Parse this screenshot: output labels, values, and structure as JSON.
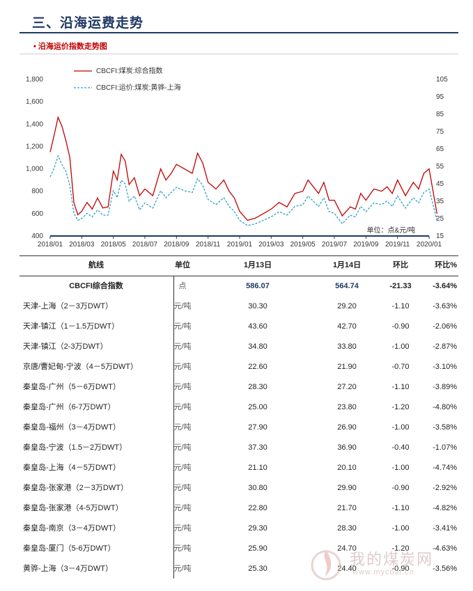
{
  "header": {
    "title": "三、沿海运费走势"
  },
  "figure": {
    "title": "• 沿海运价指数走势图"
  },
  "chart_data": {
    "type": "line",
    "title": "",
    "unit_note": "单位：点&元/吨",
    "x_tick_labels": [
      "2018/01",
      "2018/03",
      "2018/05",
      "2018/07",
      "2018/09",
      "2018/11",
      "2019/01",
      "2019/03",
      "2019/05",
      "2019/07",
      "2019/09",
      "2019/11",
      "2020/01"
    ],
    "y_left": {
      "range": [
        400,
        1800
      ],
      "ticks": [
        "400",
        "600",
        "800",
        "1,000",
        "1,200",
        "1,400",
        "1,600",
        "1,800"
      ]
    },
    "y_right": {
      "range": [
        15,
        105
      ],
      "ticks": [
        "15",
        "25",
        "35",
        "45",
        "55",
        "65",
        "75",
        "85",
        "95",
        "105"
      ]
    },
    "legend_position": "top-left",
    "series": [
      {
        "name": "CBCFI:煤炭:综合指数",
        "axis": "left",
        "color": "#c00000",
        "style": "solid",
        "x": [
          "2018/01",
          "2018/01",
          "2018/01",
          "2018/01",
          "2018/02",
          "2018/02",
          "2018/02",
          "2018/02",
          "2018/03",
          "2018/03",
          "2018/03",
          "2018/04",
          "2018/04",
          "2018/04",
          "2018/05",
          "2018/05",
          "2018/05",
          "2018/05",
          "2018/06",
          "2018/06",
          "2018/06",
          "2018/07",
          "2018/07",
          "2018/08",
          "2018/08",
          "2018/08",
          "2018/09",
          "2018/09",
          "2018/10",
          "2018/10",
          "2018/10",
          "2018/11",
          "2018/11",
          "2018/12",
          "2018/12",
          "2018/12",
          "2019/01",
          "2019/01",
          "2019/02",
          "2019/02",
          "2019/03",
          "2019/03",
          "2019/04",
          "2019/04",
          "2019/05",
          "2019/05",
          "2019/05",
          "2019/06",
          "2019/06",
          "2019/06",
          "2019/07",
          "2019/07",
          "2019/08",
          "2019/08",
          "2019/08",
          "2019/09",
          "2019/09",
          "2019/10",
          "2019/10",
          "2019/10",
          "2019/11",
          "2019/11",
          "2019/12",
          "2019/12",
          "2019/12",
          "2020/01",
          "2020/01"
        ],
        "y": [
          1150,
          1300,
          1460,
          1380,
          1250,
          1100,
          700,
          590,
          620,
          700,
          640,
          740,
          650,
          660,
          980,
          900,
          1130,
          1070,
          860,
          920,
          760,
          820,
          760,
          1000,
          900,
          960,
          1040,
          1000,
          960,
          1140,
          1050,
          880,
          820,
          900,
          800,
          740,
          620,
          540,
          560,
          600,
          640,
          700,
          660,
          780,
          800,
          900,
          840,
          780,
          880,
          720,
          720,
          580,
          660,
          640,
          780,
          720,
          820,
          800,
          840,
          780,
          900,
          760,
          880,
          820,
          960,
          1000,
          600
        ]
      },
      {
        "name": "CBCFI:运价:煤炭:黄骅-上海",
        "axis": "right",
        "color": "#2e9fc8",
        "style": "dashed",
        "x": [
          "2018/01",
          "2018/01",
          "2018/01",
          "2018/01",
          "2018/02",
          "2018/02",
          "2018/02",
          "2018/02",
          "2018/03",
          "2018/03",
          "2018/03",
          "2018/04",
          "2018/04",
          "2018/04",
          "2018/05",
          "2018/05",
          "2018/05",
          "2018/05",
          "2018/06",
          "2018/06",
          "2018/06",
          "2018/07",
          "2018/07",
          "2018/08",
          "2018/08",
          "2018/08",
          "2018/09",
          "2018/09",
          "2018/10",
          "2018/10",
          "2018/10",
          "2018/11",
          "2018/11",
          "2018/12",
          "2018/12",
          "2018/12",
          "2019/01",
          "2019/01",
          "2019/02",
          "2019/02",
          "2019/03",
          "2019/03",
          "2019/04",
          "2019/04",
          "2019/05",
          "2019/05",
          "2019/05",
          "2019/06",
          "2019/06",
          "2019/06",
          "2019/07",
          "2019/07",
          "2019/08",
          "2019/08",
          "2019/08",
          "2019/09",
          "2019/09",
          "2019/10",
          "2019/10",
          "2019/10",
          "2019/11",
          "2019/11",
          "2019/12",
          "2019/12",
          "2019/12",
          "2020/01",
          "2020/01"
        ],
        "y": [
          49,
          54,
          61,
          56,
          52,
          44,
          28,
          24,
          25,
          28,
          26,
          30,
          27,
          27,
          41,
          37,
          47,
          45,
          35,
          38,
          30,
          34,
          31,
          41,
          37,
          40,
          43,
          41,
          40,
          48,
          44,
          36,
          33,
          37,
          32,
          29,
          24,
          21,
          22,
          24,
          26,
          29,
          27,
          32,
          33,
          38,
          35,
          32,
          37,
          29,
          28,
          22,
          27,
          26,
          32,
          29,
          34,
          33,
          35,
          32,
          38,
          31,
          37,
          34,
          40,
          42,
          24
        ]
      }
    ]
  },
  "table": {
    "headers": {
      "route": "航线",
      "unit": "单位",
      "date1": "1月13日",
      "date2": "1月14日",
      "chg": "环比",
      "pct": "环比%"
    },
    "rows": [
      {
        "route": "CBCFI综合指数",
        "unit": "点",
        "d1": "586.07",
        "d2": "564.74",
        "chg": "-21.33",
        "pct": "-3.64%"
      },
      {
        "route": "天津-上海（2－3万DWT）",
        "unit": "元/吨",
        "d1": "30.30",
        "d2": "29.20",
        "chg": "-1.10",
        "pct": "-3.63%"
      },
      {
        "route": "天津-镇江（1－1.5万DWT）",
        "unit": "元/吨",
        "d1": "43.60",
        "d2": "42.70",
        "chg": "-0.90",
        "pct": "-2.06%"
      },
      {
        "route": "天津-镇江（2-3万DWT）",
        "unit": "元/吨",
        "d1": "34.80",
        "d2": "33.80",
        "chg": "-1.00",
        "pct": "-2.87%"
      },
      {
        "route": "京唐/曹妃甸-宁波（4－5万DWT）",
        "unit": "元/吨",
        "d1": "22.60",
        "d2": "21.90",
        "chg": "-0.70",
        "pct": "-3.10%"
      },
      {
        "route": "秦皇岛-广州（5－6万DWT）",
        "unit": "元/吨",
        "d1": "28.30",
        "d2": "27.20",
        "chg": "-1.10",
        "pct": "-3.89%"
      },
      {
        "route": "秦皇岛-广州（6-7万DWT）",
        "unit": "元/吨",
        "d1": "25.00",
        "d2": "23.80",
        "chg": "-1.20",
        "pct": "-4.80%"
      },
      {
        "route": "秦皇岛-福州（3－4万DWT）",
        "unit": "元/吨",
        "d1": "27.90",
        "d2": "26.90",
        "chg": "-1.00",
        "pct": "-3.58%"
      },
      {
        "route": "秦皇岛-宁波（1.5－2万DWT）",
        "unit": "元/吨",
        "d1": "37.30",
        "d2": "36.90",
        "chg": "-0.40",
        "pct": "-1.07%"
      },
      {
        "route": "秦皇岛-上海（4－5万DWT）",
        "unit": "元/吨",
        "d1": "21.10",
        "d2": "20.10",
        "chg": "-1.00",
        "pct": "-4.74%"
      },
      {
        "route": "秦皇岛-张家港（2－3万DWT）",
        "unit": "元/吨",
        "d1": "30.80",
        "d2": "29.90",
        "chg": "-0.90",
        "pct": "-2.92%"
      },
      {
        "route": "秦皇岛-张家港（4-5万DWT）",
        "unit": "元/吨",
        "d1": "22.80",
        "d2": "21.70",
        "chg": "-1.10",
        "pct": "-4.82%"
      },
      {
        "route": "秦皇岛-南京（3－4万DWT）",
        "unit": "元/吨",
        "d1": "29.30",
        "d2": "28.30",
        "chg": "-1.00",
        "pct": "-3.41%"
      },
      {
        "route": "秦皇岛-厦门（5-6万DWT）",
        "unit": "元/吨",
        "d1": "25.90",
        "d2": "24.70",
        "chg": "-1.20",
        "pct": "-4.63%"
      },
      {
        "route": "黄骅-上海（3－4万DWT）",
        "unit": "元/吨",
        "d1": "25.30",
        "d2": "24.40",
        "chg": "-0.90",
        "pct": "-3.56%"
      }
    ]
  },
  "watermark": {
    "name": "我的煤炭网",
    "url": "www.mycoal.cn",
    "color": "#c8a0a0"
  }
}
